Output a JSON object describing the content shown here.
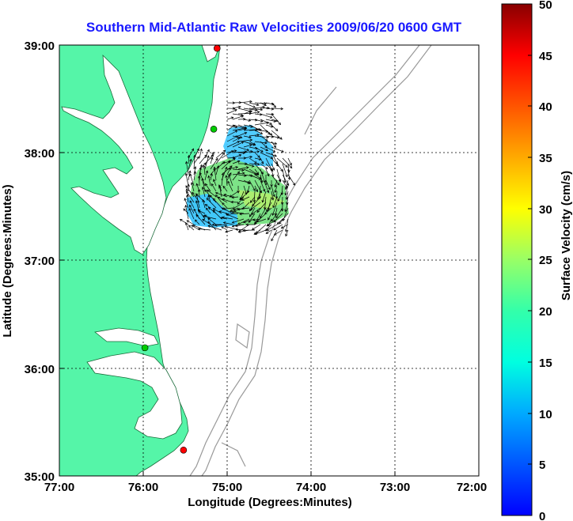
{
  "title": "Southern Mid-Atlantic Raw Velocities 2009/06/20 0600 GMT",
  "xlabel": "Longitude (Degrees:Minutes)",
  "ylabel": "Latitude (Degrees:Minutes)",
  "colorbar_label": "Surface Velocity (cm/s)",
  "chart_data": {
    "type": "map",
    "x_ticks": [
      "77:00",
      "76:00",
      "75:00",
      "74:00",
      "73:00",
      "72:00"
    ],
    "y_ticks": [
      "39:00",
      "38:00",
      "37:00",
      "36:00",
      "35:00"
    ],
    "xlim": [
      -77,
      -72
    ],
    "ylim": [
      35,
      39
    ],
    "grid": true,
    "colorbar": {
      "ticks": [
        "50",
        "45",
        "40",
        "35",
        "30",
        "25",
        "20",
        "15",
        "10",
        "5",
        "0"
      ],
      "range": [
        0,
        50
      ],
      "colormap": "jet"
    },
    "stations": [
      {
        "lon": -75.12,
        "lat": 38.97,
        "color": "#ff0000"
      },
      {
        "lon": -75.16,
        "lat": 38.22,
        "color": "#00cc00"
      },
      {
        "lon": -75.98,
        "lat": 36.19,
        "color": "#00cc00"
      },
      {
        "lon": -75.52,
        "lat": 35.24,
        "color": "#ff0000"
      }
    ],
    "colors": {
      "land": "#55f5a8",
      "bathymetry": "#999999",
      "arrows": "#000000"
    }
  }
}
